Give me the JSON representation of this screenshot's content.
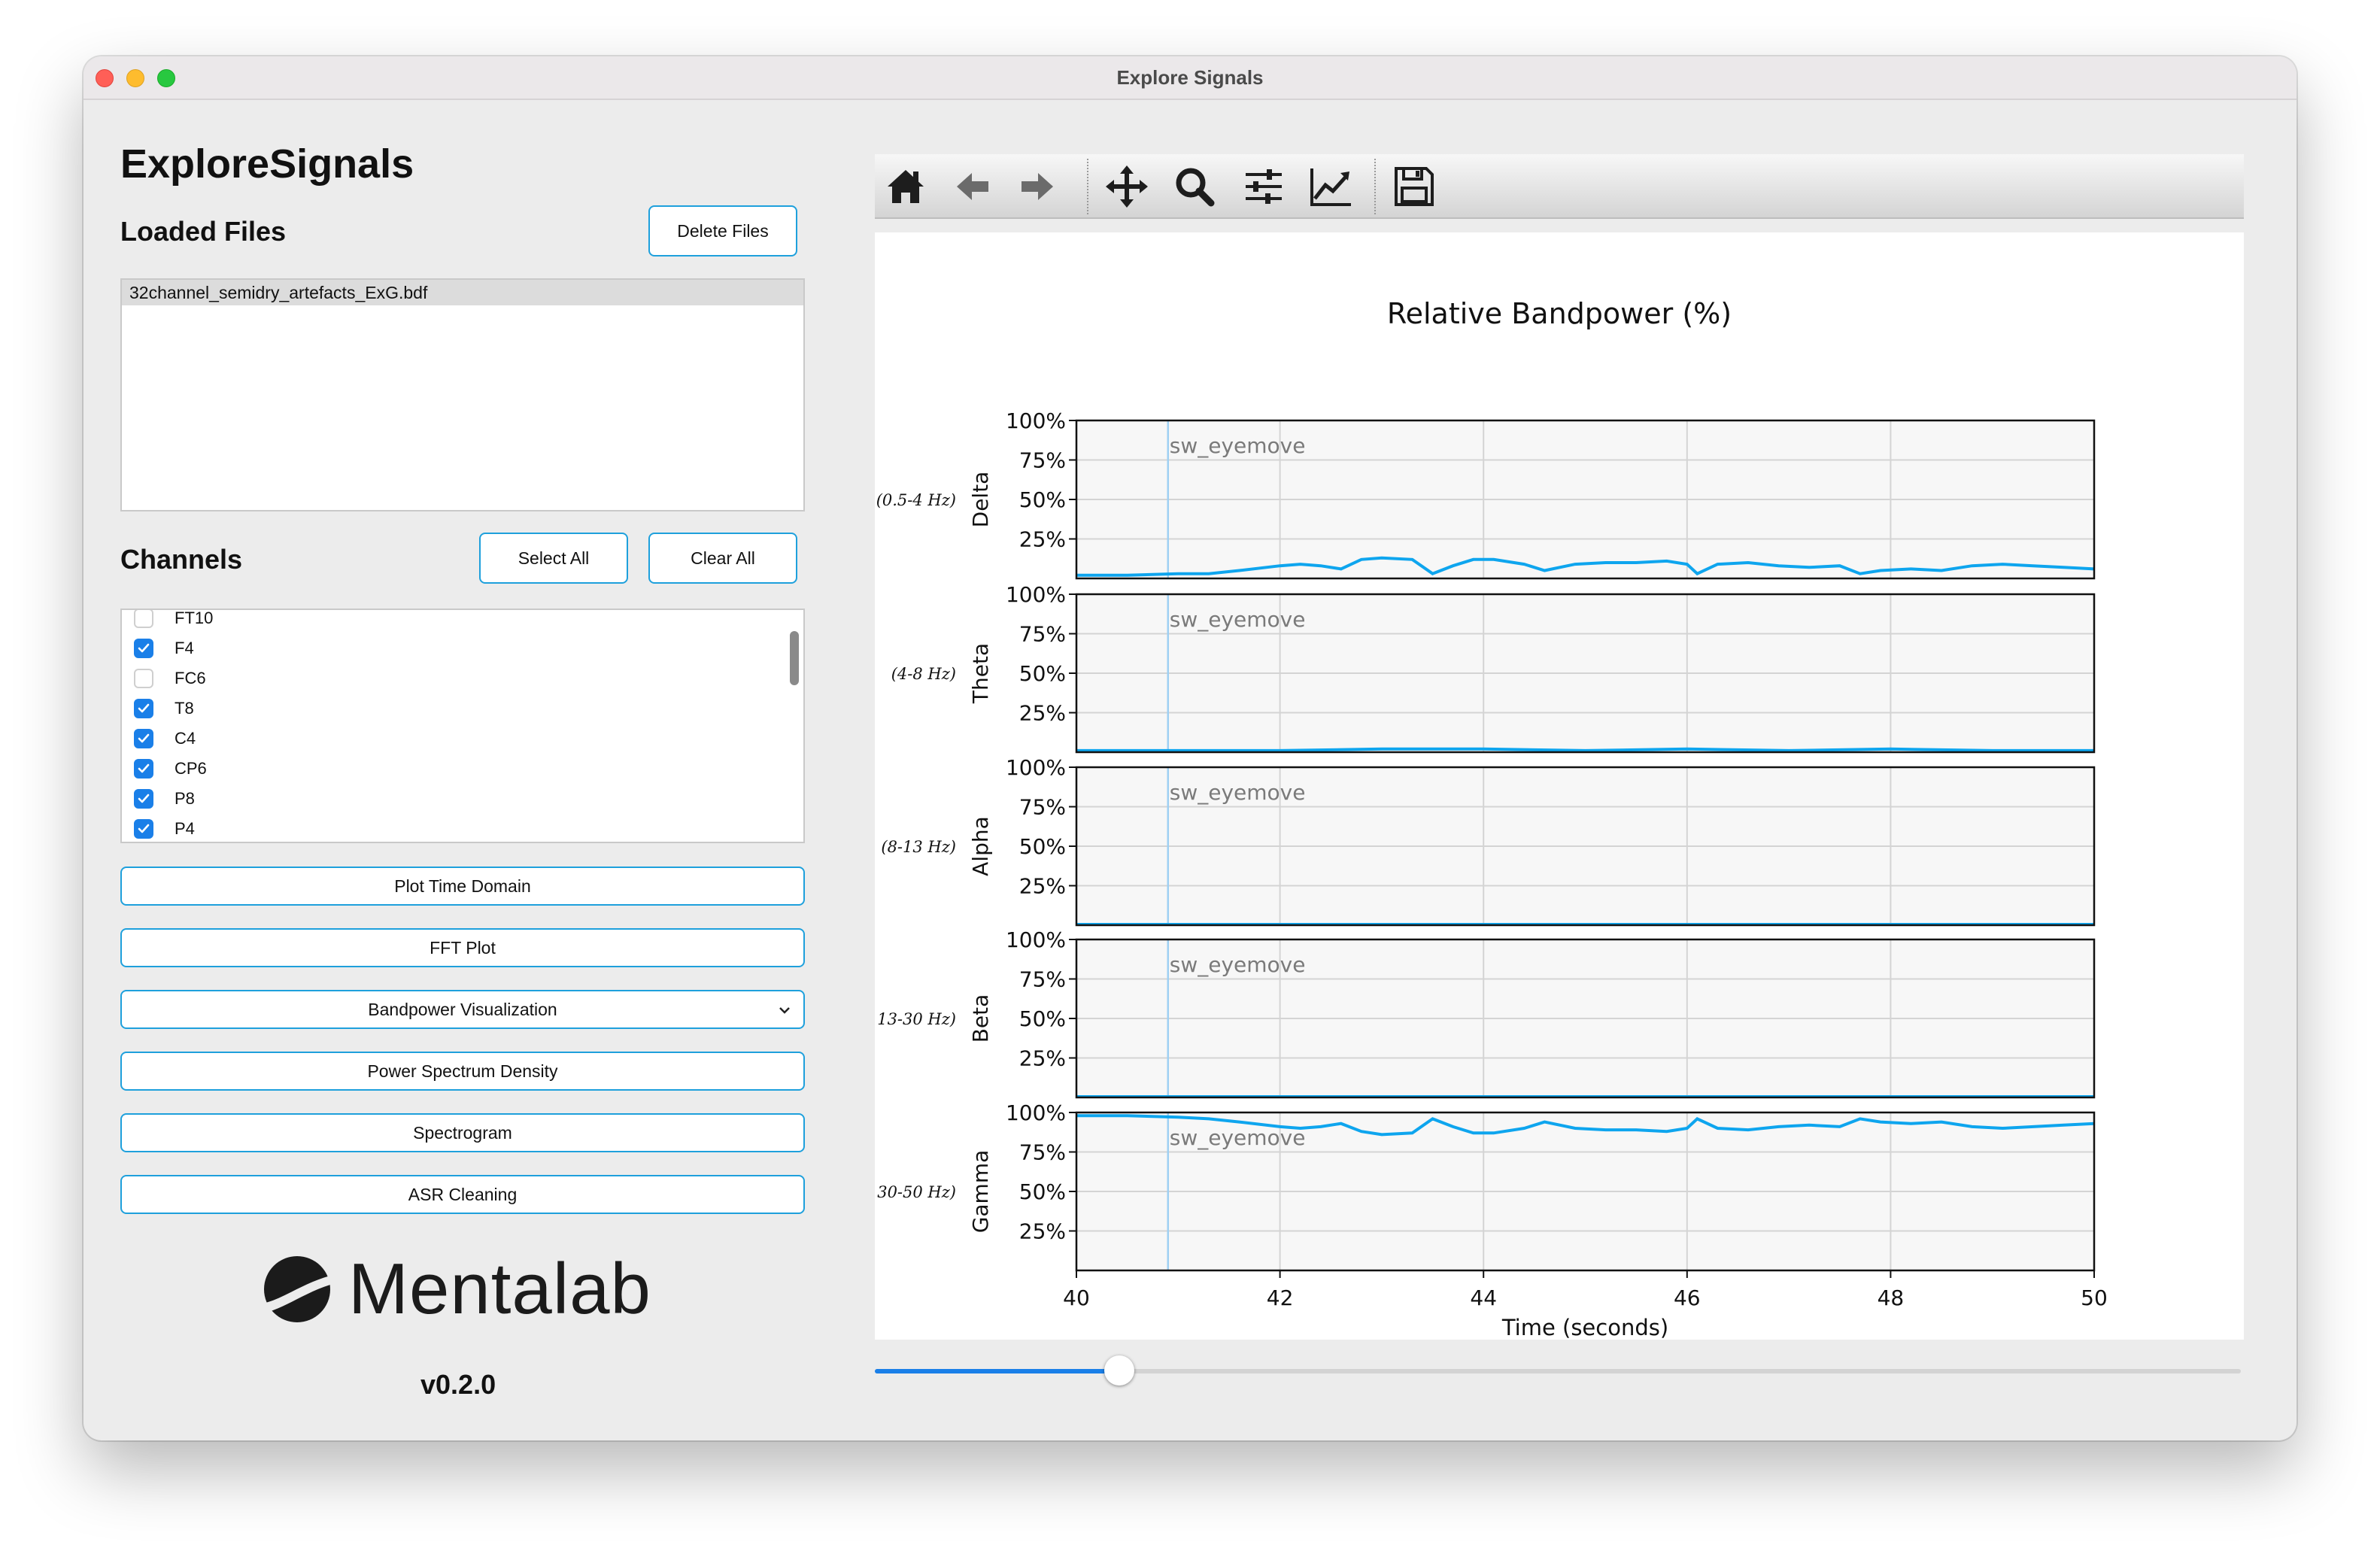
{
  "window": {
    "title": "Explore Signals"
  },
  "app": {
    "title": "ExploreSignals",
    "version": "v0.2.0"
  },
  "loaded_files": {
    "title": "Loaded Files",
    "delete_label": "Delete Files",
    "files": [
      "32channel_semidry_artefacts_ExG.bdf"
    ]
  },
  "channels": {
    "title": "Channels",
    "select_all_label": "Select All",
    "clear_all_label": "Clear All",
    "items": [
      {
        "label": "FT10",
        "checked": false
      },
      {
        "label": "F4",
        "checked": true
      },
      {
        "label": "FC6",
        "checked": false
      },
      {
        "label": "T8",
        "checked": true
      },
      {
        "label": "C4",
        "checked": true
      },
      {
        "label": "CP6",
        "checked": true
      },
      {
        "label": "P8",
        "checked": true
      },
      {
        "label": "P4",
        "checked": true
      }
    ]
  },
  "actions": {
    "plot_time_domain": "Plot Time Domain",
    "fft_plot": "FFT Plot",
    "bandpower_select": "Bandpower Visualization",
    "psd": "Power Spectrum Density",
    "spectrogram": "Spectrogram",
    "asr": "ASR Cleaning"
  },
  "logo": {
    "text": "Mentalab"
  },
  "toolbar": {
    "icons": [
      "home-icon",
      "back-arrow-icon",
      "forward-arrow-icon",
      "pan-icon",
      "zoom-icon",
      "configure-subplots-icon",
      "edit-axis-icon",
      "save-icon"
    ]
  },
  "slider": {
    "position": 0.179
  },
  "colors": {
    "accent": "#1a7fe8",
    "line": "#0ea5ee",
    "marker": "#9fd0f3",
    "button_border": "#1ea0dc"
  },
  "chart_data": {
    "type": "line",
    "title": "Relative Bandpower (%)",
    "xlabel": "Time (seconds)",
    "xlim": [
      40,
      50
    ],
    "x_ticks": [
      "40",
      "42",
      "44",
      "46",
      "48",
      "50"
    ],
    "ylim": [
      0,
      100
    ],
    "y_ticks": [
      "25%",
      "50%",
      "75%",
      "100%"
    ],
    "grid": true,
    "marker": {
      "x": 40.9,
      "label": "sw_eyemove"
    },
    "panels": [
      {
        "name": "Delta",
        "range": "(0.5-4 Hz)",
        "x": [
          40,
          40.5,
          41,
          41.3,
          41.6,
          42,
          42.2,
          42.4,
          42.6,
          42.8,
          43,
          43.3,
          43.5,
          43.7,
          43.9,
          44.1,
          44.4,
          44.6,
          44.9,
          45.2,
          45.5,
          45.8,
          46,
          46.1,
          46.3,
          46.6,
          46.9,
          47.2,
          47.5,
          47.7,
          47.9,
          48.2,
          48.5,
          48.8,
          49.1,
          49.4,
          49.7,
          50
        ],
        "values": [
          2,
          2,
          3,
          3,
          5,
          8,
          9,
          8,
          6,
          12,
          13,
          12,
          3,
          8,
          12,
          12,
          9,
          5,
          9,
          10,
          10,
          11,
          9,
          3,
          9,
          10,
          8,
          7,
          8,
          3,
          5,
          6,
          5,
          8,
          9,
          8,
          7,
          6
        ]
      },
      {
        "name": "Theta",
        "range": "(4-8 Hz)",
        "x": [
          40,
          41,
          42,
          43,
          44,
          45,
          46,
          47,
          48,
          49,
          50
        ],
        "values": [
          1,
          1,
          1,
          2,
          2,
          1,
          2,
          1,
          2,
          1,
          1
        ]
      },
      {
        "name": "Alpha",
        "range": "(8-13 Hz)",
        "x": [
          40,
          41,
          42,
          43,
          44,
          45,
          46,
          47,
          48,
          49,
          50
        ],
        "values": [
          0.5,
          0.5,
          0.5,
          0.5,
          0.5,
          0.5,
          0.5,
          0.5,
          0.5,
          0.5,
          0.5
        ]
      },
      {
        "name": "Beta",
        "range": "13-30 Hz)",
        "x": [
          40,
          41,
          42,
          43,
          44,
          45,
          46,
          47,
          48,
          49,
          50
        ],
        "values": [
          0.5,
          0.5,
          0.5,
          0.5,
          0.5,
          0.5,
          0.5,
          0.5,
          0.5,
          0.5,
          0.5
        ]
      },
      {
        "name": "Gamma",
        "range": "30-50 Hz)",
        "x": [
          40,
          40.5,
          41,
          41.3,
          41.6,
          42,
          42.2,
          42.4,
          42.6,
          42.8,
          43,
          43.3,
          43.5,
          43.7,
          43.9,
          44.1,
          44.4,
          44.6,
          44.9,
          45.2,
          45.5,
          45.8,
          46,
          46.1,
          46.3,
          46.6,
          46.9,
          47.2,
          47.5,
          47.7,
          47.9,
          48.2,
          48.5,
          48.8,
          49.1,
          49.4,
          49.7,
          50
        ],
        "values": [
          98,
          98,
          97,
          96,
          94,
          91,
          90,
          91,
          93,
          88,
          86,
          87,
          96,
          91,
          87,
          87,
          90,
          94,
          90,
          89,
          89,
          88,
          90,
          96,
          90,
          89,
          91,
          92,
          91,
          96,
          94,
          93,
          94,
          91,
          90,
          91,
          92,
          93
        ]
      }
    ]
  }
}
